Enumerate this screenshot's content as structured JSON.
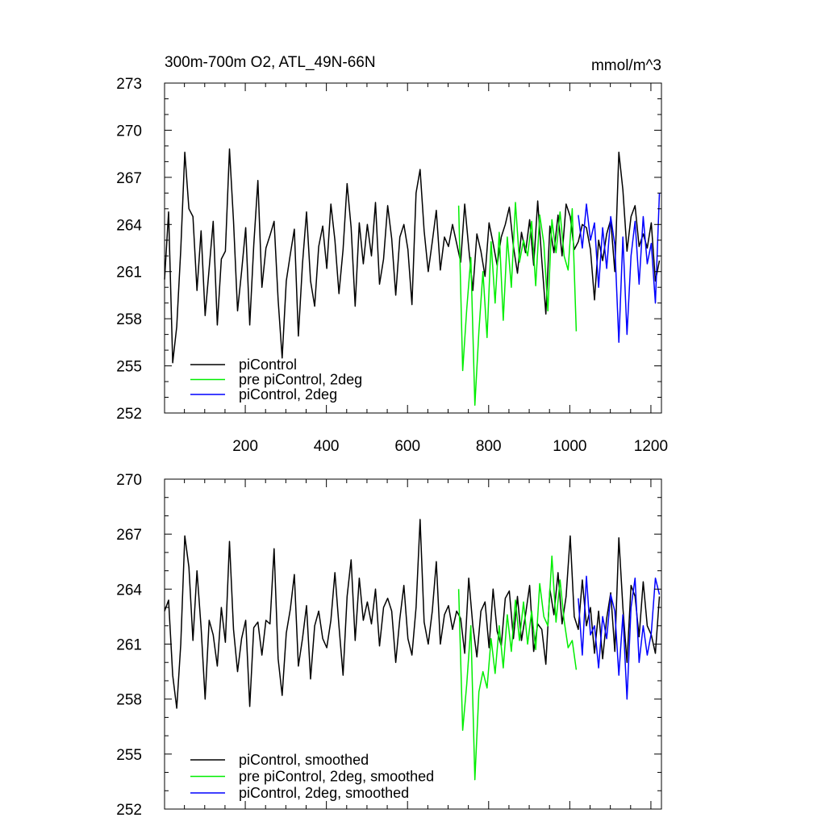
{
  "colors": {
    "piControl": "#000000",
    "pre_piControl_2deg": "#00ee00",
    "piControl_2deg": "#0000ff",
    "axes": "#000000",
    "background": "#ffffff"
  },
  "chart_data": [
    {
      "type": "line",
      "title_left": "300m-700m O2, ATL_49N-66N",
      "title_right": "mmol/m^3",
      "xlabel": "",
      "ylabel": "",
      "xlim": [
        1,
        1226
      ],
      "ylim": [
        252,
        273
      ],
      "xticks": [
        200,
        400,
        600,
        800,
        1000,
        1200
      ],
      "xtick_labels": [
        "200",
        "400",
        "600",
        "800",
        "1000",
        "1200"
      ],
      "yticks": [
        252,
        255,
        258,
        261,
        264,
        267,
        270,
        273
      ],
      "ytick_labels": [
        "252",
        "255",
        "258",
        "261",
        "264",
        "267",
        "270",
        "273"
      ],
      "grid": false,
      "legend_position": "bottom-left",
      "series": [
        {
          "name": "piControl",
          "color": "#000000",
          "x": [
            1,
            11,
            21,
            31,
            41,
            51,
            61,
            71,
            81,
            91,
            101,
            111,
            121,
            131,
            141,
            151,
            161,
            171,
            181,
            191,
            201,
            211,
            221,
            231,
            241,
            251,
            261,
            271,
            281,
            291,
            301,
            311,
            321,
            331,
            341,
            351,
            361,
            371,
            381,
            391,
            401,
            411,
            421,
            431,
            441,
            451,
            461,
            471,
            481,
            491,
            501,
            511,
            521,
            531,
            541,
            551,
            561,
            571,
            581,
            591,
            601,
            611,
            621,
            631,
            641,
            651,
            661,
            671,
            681,
            691,
            701,
            711,
            721,
            731,
            741,
            751,
            761,
            771,
            781,
            791,
            801,
            811,
            821,
            831,
            841,
            851,
            861,
            871,
            881,
            891,
            901,
            911,
            921,
            931,
            941,
            951,
            961,
            971,
            981,
            991,
            1001,
            1011,
            1021,
            1031,
            1041,
            1051,
            1061,
            1071,
            1081,
            1091,
            1101,
            1111,
            1121,
            1131,
            1141,
            1151,
            1161,
            1171,
            1181,
            1191,
            1201,
            1211,
            1221
          ],
          "y": [
            260.5,
            264.8,
            255.2,
            257.5,
            262.4,
            268.6,
            265.0,
            264.5,
            259.8,
            263.6,
            258.2,
            261.2,
            264.2,
            257.6,
            261.8,
            262.3,
            268.8,
            264.2,
            258.5,
            261.0,
            263.8,
            257.6,
            262.7,
            266.8,
            260.0,
            262.5,
            263.3,
            264.2,
            259.2,
            255.5,
            260.4,
            262.1,
            263.7,
            256.9,
            261.5,
            264.8,
            260.4,
            258.8,
            262.6,
            263.9,
            261.2,
            265.3,
            263.0,
            259.6,
            262.4,
            266.6,
            263.8,
            258.8,
            264.1,
            261.5,
            264.0,
            262.0,
            265.4,
            260.2,
            261.8,
            265.2,
            263.1,
            259.5,
            263.2,
            264.0,
            262.4,
            258.9,
            266.0,
            267.5,
            263.6,
            261.0,
            262.9,
            264.9,
            261.1,
            263.2,
            262.6,
            264.0,
            262.8,
            261.6,
            265.3,
            262.5,
            259.8,
            263.4,
            262.3,
            260.7,
            264.1,
            262.8,
            261.4,
            263.2,
            264.0,
            265.1,
            262.6,
            260.9,
            263.5,
            262.2,
            264.3,
            261.4,
            265.5,
            261.7,
            258.3,
            263.9,
            262.2,
            264.6,
            262.0,
            265.3,
            264.5,
            262.4,
            262.9,
            264.0,
            263.8,
            262.4,
            259.2,
            263.0,
            261.7,
            263.4,
            264.3,
            261.0,
            268.6,
            266.2,
            262.3,
            264.5,
            265.2,
            262.6,
            263.4,
            262.5,
            264.1,
            260.4,
            261.7
          ]
        },
        {
          "name": "pre piControl, 2deg",
          "color": "#00ee00",
          "x": [
            726,
            736,
            746,
            756,
            766,
            776,
            786,
            796,
            806,
            816,
            826,
            836,
            846,
            856,
            866,
            876,
            886,
            896,
            906,
            916,
            926,
            936,
            946,
            956,
            966,
            976,
            986,
            996,
            1006,
            1016
          ],
          "y": [
            265.2,
            254.7,
            258.6,
            261.9,
            252.5,
            257.2,
            261.0,
            256.8,
            262.9,
            259.0,
            263.5,
            257.9,
            263.2,
            260.0,
            265.4,
            261.6,
            263.0,
            262.0,
            264.2,
            260.1,
            264.6,
            262.8,
            258.5,
            264.3,
            262.2,
            264.8,
            262.0,
            261.1,
            265.0,
            257.2
          ]
        },
        {
          "name": "piControl, 2deg",
          "color": "#0000ff",
          "x": [
            1021,
            1031,
            1041,
            1051,
            1061,
            1071,
            1081,
            1091,
            1101,
            1111,
            1121,
            1131,
            1141,
            1151,
            1161,
            1171,
            1181,
            1191,
            1201,
            1211,
            1221
          ],
          "y": [
            264.6,
            262.5,
            265.3,
            263.0,
            264.1,
            260.0,
            263.8,
            261.2,
            264.5,
            262.7,
            256.5,
            263.2,
            257.0,
            262.0,
            264.2,
            260.2,
            264.5,
            261.5,
            262.8,
            259.0,
            266.0
          ]
        }
      ]
    },
    {
      "type": "line",
      "title_left": "",
      "title_right": "",
      "xlabel": "",
      "ylabel": "",
      "xlim": [
        1,
        1226
      ],
      "ylim": [
        252,
        270
      ],
      "xticks": [
        200,
        400,
        600,
        800,
        1000,
        1200
      ],
      "xtick_labels": [],
      "yticks": [
        252,
        255,
        258,
        261,
        264,
        267,
        270
      ],
      "ytick_labels": [
        "252",
        "255",
        "258",
        "261",
        "264",
        "267",
        "270"
      ],
      "grid": false,
      "legend_position": "bottom-left",
      "series": [
        {
          "name": "piControl, smoothed",
          "color": "#000000",
          "x": [
            1,
            11,
            21,
            31,
            41,
            51,
            61,
            71,
            81,
            91,
            101,
            111,
            121,
            131,
            141,
            151,
            161,
            171,
            181,
            191,
            201,
            211,
            221,
            231,
            241,
            251,
            261,
            271,
            281,
            291,
            301,
            311,
            321,
            331,
            341,
            351,
            361,
            371,
            381,
            391,
            401,
            411,
            421,
            431,
            441,
            451,
            461,
            471,
            481,
            491,
            501,
            511,
            521,
            531,
            541,
            551,
            561,
            571,
            581,
            591,
            601,
            611,
            621,
            631,
            641,
            651,
            661,
            671,
            681,
            691,
            701,
            711,
            721,
            731,
            741,
            751,
            761,
            771,
            781,
            791,
            801,
            811,
            821,
            831,
            841,
            851,
            861,
            871,
            881,
            891,
            901,
            911,
            921,
            931,
            941,
            951,
            961,
            971,
            981,
            991,
            1001,
            1011,
            1021,
            1031,
            1041,
            1051,
            1061,
            1071,
            1081,
            1091,
            1101,
            1111,
            1121,
            1131,
            1141,
            1151,
            1161,
            1171,
            1181,
            1191,
            1201,
            1211,
            1221
          ],
          "y": [
            262.8,
            263.4,
            259.3,
            257.5,
            261.0,
            266.9,
            265.2,
            261.2,
            265.0,
            261.9,
            258.0,
            262.3,
            261.5,
            259.8,
            263.0,
            261.1,
            266.6,
            261.8,
            259.5,
            261.3,
            262.3,
            257.6,
            261.9,
            262.2,
            260.4,
            262.3,
            262.1,
            266.2,
            260.2,
            258.2,
            261.6,
            262.9,
            264.8,
            259.8,
            261.3,
            263.1,
            259.1,
            262.0,
            262.8,
            261.3,
            260.8,
            262.3,
            264.9,
            262.0,
            259.3,
            263.6,
            265.6,
            261.2,
            264.6,
            262.3,
            263.3,
            262.1,
            264.0,
            260.9,
            263.0,
            263.5,
            262.8,
            260.0,
            262.4,
            264.2,
            261.3,
            260.4,
            263.0,
            267.8,
            262.2,
            261.0,
            262.8,
            265.5,
            261.0,
            262.6,
            263.1,
            261.8,
            262.8,
            262.4,
            260.5,
            264.6,
            262.0,
            260.3,
            262.8,
            263.3,
            260.8,
            264.0,
            261.7,
            260.9,
            263.5,
            263.9,
            261.3,
            263.6,
            261.2,
            262.6,
            264.2,
            260.6,
            262.1,
            261.8,
            259.9,
            264.0,
            262.6,
            264.9,
            262.1,
            263.6,
            266.9,
            262.5,
            261.8,
            264.5,
            262.0,
            263.0,
            260.5,
            262.8,
            260.2,
            262.4,
            263.8,
            260.6,
            266.8,
            263.0,
            260.0,
            264.2,
            263.6,
            261.4,
            264.4,
            262.0,
            261.5,
            260.5,
            263.6
          ]
        },
        {
          "name": "pre piControl, 2deg, smoothed",
          "color": "#00ee00",
          "x": [
            726,
            736,
            746,
            756,
            766,
            776,
            786,
            796,
            806,
            816,
            826,
            836,
            846,
            856,
            866,
            876,
            886,
            896,
            906,
            916,
            926,
            936,
            946,
            956,
            966,
            976,
            986,
            996,
            1006,
            1016
          ],
          "y": [
            264.0,
            256.3,
            258.8,
            262.0,
            253.6,
            258.4,
            259.5,
            258.6,
            261.3,
            259.4,
            262.0,
            259.7,
            262.6,
            260.6,
            263.4,
            261.2,
            263.3,
            261.0,
            262.8,
            260.7,
            264.3,
            262.5,
            262.0,
            265.8,
            262.2,
            264.5,
            262.3,
            260.8,
            261.2,
            259.6
          ]
        },
        {
          "name": "piControl, 2deg, smoothed",
          "color": "#0000ff",
          "x": [
            1021,
            1031,
            1041,
            1051,
            1061,
            1071,
            1081,
            1091,
            1101,
            1111,
            1121,
            1131,
            1141,
            1151,
            1161,
            1171,
            1181,
            1191,
            1201,
            1211,
            1221
          ],
          "y": [
            263.5,
            260.4,
            264.7,
            261.5,
            262.0,
            259.7,
            262.5,
            261.3,
            263.7,
            262.8,
            259.3,
            262.6,
            258.0,
            263.0,
            264.6,
            260.0,
            262.0,
            260.4,
            261.6,
            264.6,
            263.7
          ]
        }
      ]
    }
  ]
}
